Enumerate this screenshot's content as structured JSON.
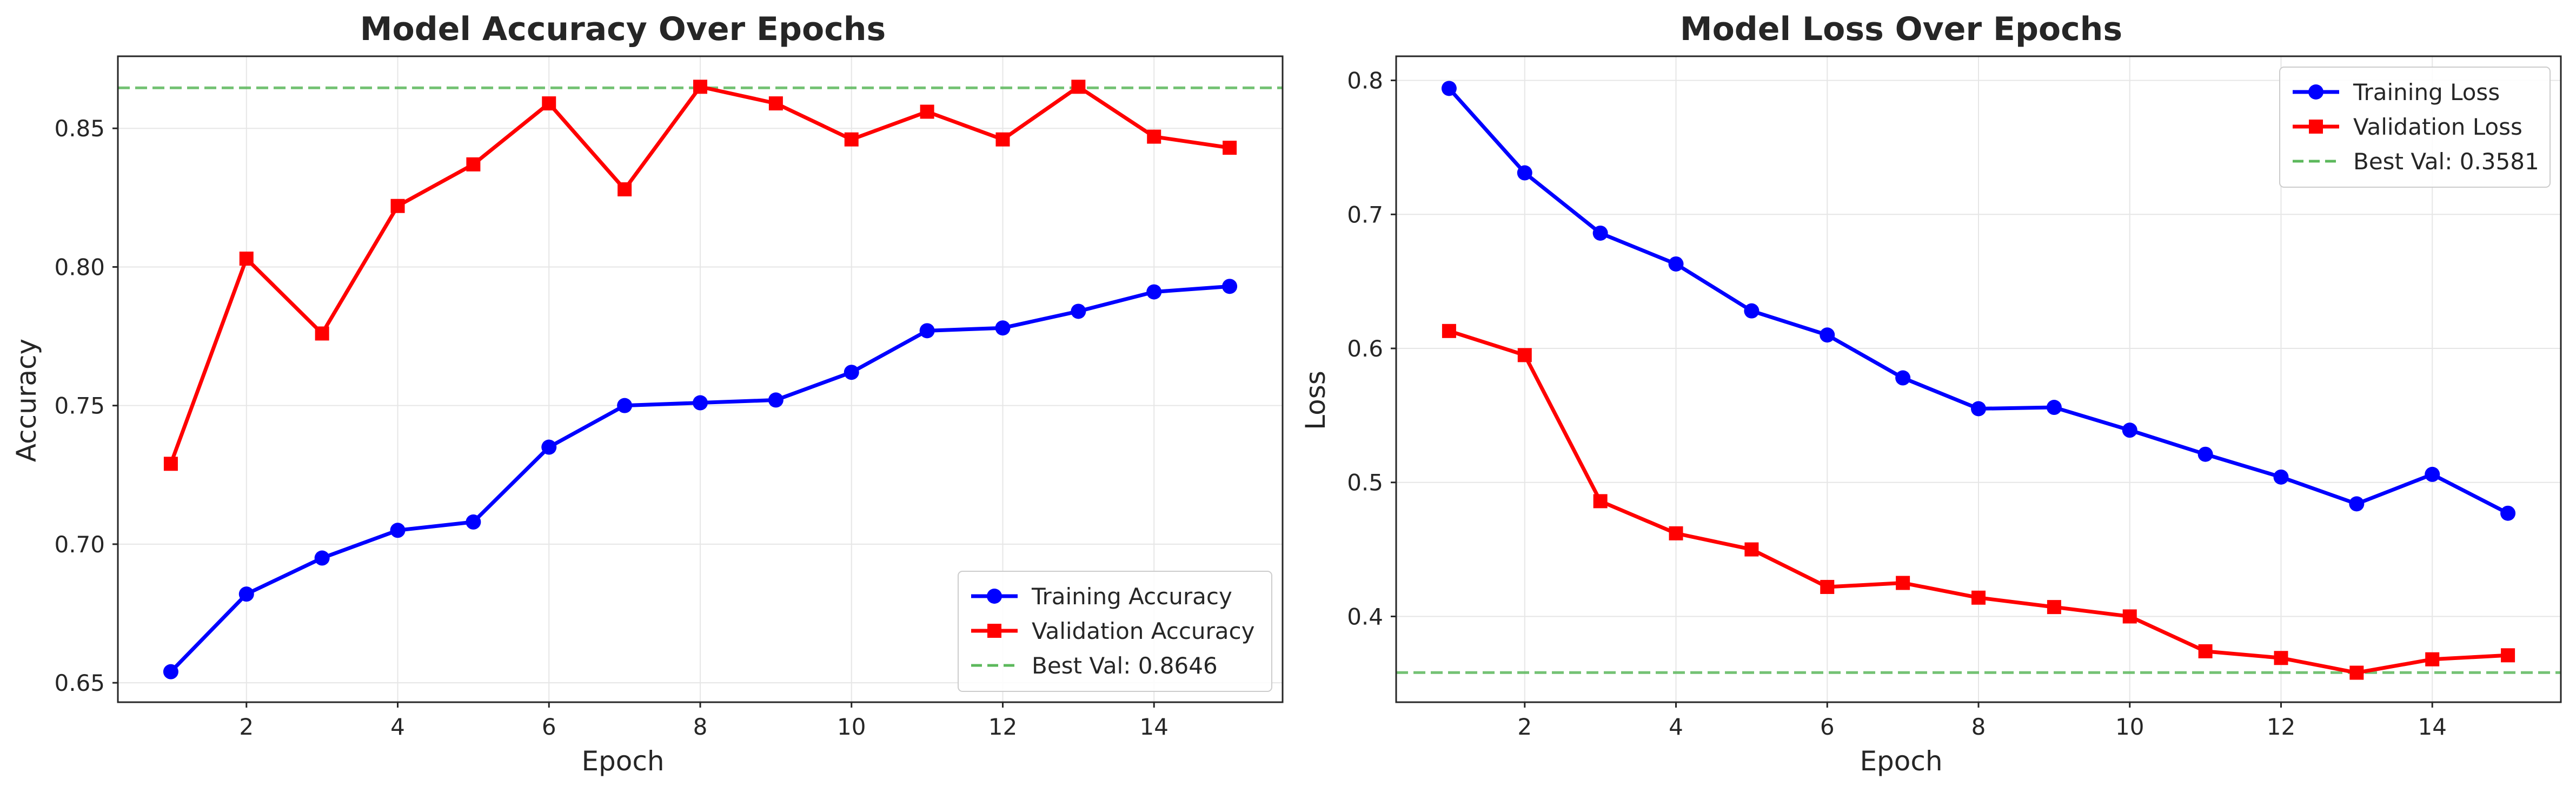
{
  "chart_data": [
    {
      "type": "line",
      "title": "Model Accuracy Over Epochs",
      "xlabel": "Epoch",
      "ylabel": "Accuracy",
      "xlim": [
        0.3,
        15.7
      ],
      "ylim": [
        0.643,
        0.876
      ],
      "xticks": [
        2,
        4,
        6,
        8,
        10,
        12,
        14
      ],
      "yticks": [
        0.65,
        0.7,
        0.75,
        0.8,
        0.85
      ],
      "ytick_decimals": 2,
      "grid": true,
      "legend_position": "lower-right",
      "x": [
        1,
        2,
        3,
        4,
        5,
        6,
        7,
        8,
        9,
        10,
        11,
        12,
        13,
        14,
        15
      ],
      "series": [
        {
          "name": "Training Accuracy",
          "color": "#0000ff",
          "marker": "circle",
          "values": [
            0.654,
            0.682,
            0.695,
            0.705,
            0.708,
            0.735,
            0.75,
            0.751,
            0.752,
            0.762,
            0.777,
            0.778,
            0.784,
            0.791,
            0.793
          ]
        },
        {
          "name": "Validation Accuracy",
          "color": "#ff0000",
          "marker": "square",
          "values": [
            0.729,
            0.803,
            0.776,
            0.822,
            0.837,
            0.859,
            0.828,
            0.865,
            0.859,
            0.846,
            0.856,
            0.846,
            0.865,
            0.847,
            0.843
          ]
        }
      ],
      "reference_line": {
        "label": "Best Val: 0.8646",
        "value": 0.8646,
        "color": "#5cb85c"
      }
    },
    {
      "type": "line",
      "title": "Model Loss Over Epochs",
      "xlabel": "Epoch",
      "ylabel": "Loss",
      "xlim": [
        0.3,
        15.7
      ],
      "ylim": [
        0.336,
        0.818
      ],
      "xticks": [
        2,
        4,
        6,
        8,
        10,
        12,
        14
      ],
      "yticks": [
        0.4,
        0.5,
        0.6,
        0.7,
        0.8
      ],
      "ytick_decimals": 1,
      "grid": true,
      "legend_position": "top-right",
      "x": [
        1,
        2,
        3,
        4,
        5,
        6,
        7,
        8,
        9,
        10,
        11,
        12,
        13,
        14,
        15
      ],
      "series": [
        {
          "name": "Training Loss",
          "color": "#0000ff",
          "marker": "circle",
          "values": [
            0.794,
            0.731,
            0.686,
            0.663,
            0.628,
            0.61,
            0.578,
            0.555,
            0.556,
            0.539,
            0.521,
            0.504,
            0.484,
            0.506,
            0.477
          ]
        },
        {
          "name": "Validation Loss",
          "color": "#ff0000",
          "marker": "square",
          "values": [
            0.613,
            0.595,
            0.486,
            0.462,
            0.45,
            0.422,
            0.425,
            0.414,
            0.407,
            0.4,
            0.374,
            0.369,
            0.358,
            0.368,
            0.371
          ]
        }
      ],
      "reference_line": {
        "label": "Best Val: 0.3581",
        "value": 0.3581,
        "color": "#5cb85c"
      }
    }
  ]
}
